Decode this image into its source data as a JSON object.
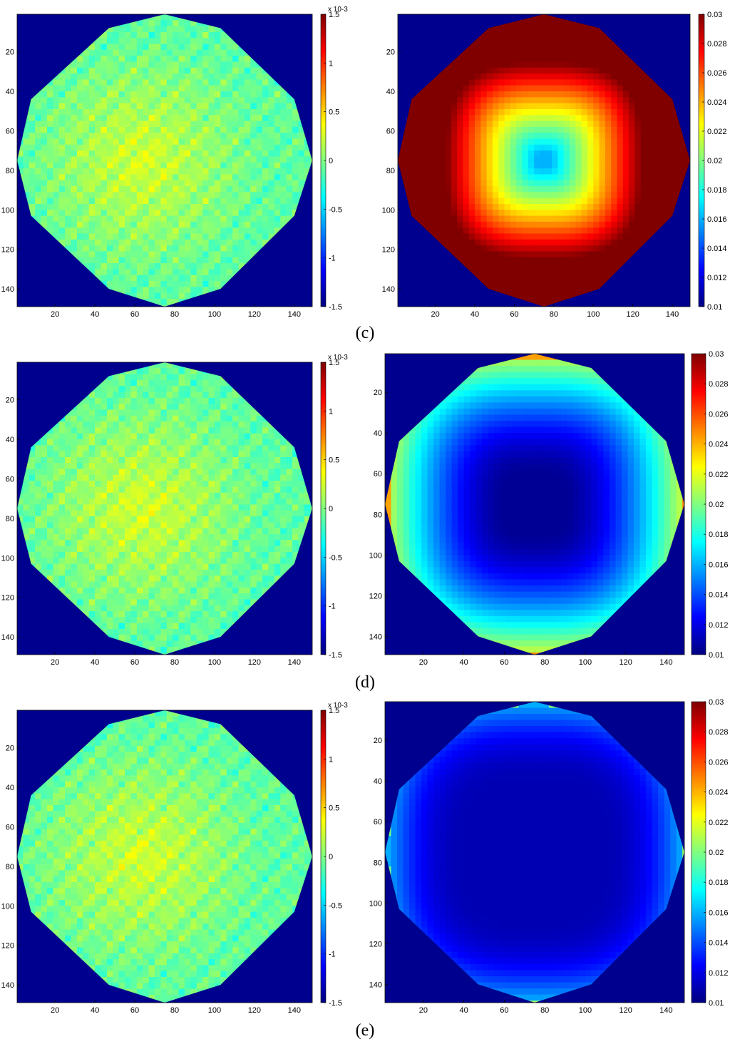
{
  "row_labels": [
    "(c)",
    "(d)",
    "(e)"
  ],
  "chart_data": [
    {
      "type": "heatmap",
      "row": 1,
      "panel": "left",
      "field": "noise",
      "x_ticks": [
        20,
        40,
        60,
        80,
        100,
        120,
        140
      ],
      "y_ticks": [
        20,
        40,
        60,
        80,
        100,
        120,
        140
      ],
      "x_range": [
        1,
        149
      ],
      "y_range": [
        1,
        149
      ],
      "cbar_ticks": [
        "1.5",
        "1",
        "0.5",
        "0",
        "-0.5",
        "-1",
        "-1.5"
      ],
      "cbar_range": [
        -1.5,
        1.5
      ],
      "cbar_exponent": "x 10-3",
      "colors": {
        "background": "#00008f"
      }
    },
    {
      "type": "heatmap",
      "row": 1,
      "panel": "right",
      "field": "radial",
      "x_ticks": [
        20,
        40,
        60,
        80,
        100,
        120,
        140
      ],
      "y_ticks": [
        20,
        40,
        60,
        80,
        100,
        120,
        140
      ],
      "x_range": [
        1,
        149
      ],
      "y_range": [
        1,
        149
      ],
      "cbar_ticks": [
        "0.03",
        "0.028",
        "0.026",
        "0.024",
        "0.022",
        "0.02",
        "0.018",
        "0.016",
        "0.014",
        "0.012",
        "0.01"
      ],
      "cbar_range": [
        0.01,
        0.03
      ],
      "colors": {
        "background": "#00008f"
      }
    },
    {
      "type": "heatmap",
      "row": 2,
      "panel": "left",
      "field": "noise",
      "x_ticks": [
        20,
        40,
        60,
        80,
        100,
        120,
        140
      ],
      "y_ticks": [
        20,
        40,
        60,
        80,
        100,
        120,
        140
      ],
      "x_range": [
        1,
        149
      ],
      "y_range": [
        1,
        149
      ],
      "cbar_ticks": [
        "1.5",
        "1",
        "0.5",
        "0",
        "-0.5",
        "-1",
        "-1.5"
      ],
      "cbar_range": [
        -1.5,
        1.5
      ],
      "cbar_exponent": "x 10-3",
      "colors": {
        "background": "#00008f"
      }
    },
    {
      "type": "heatmap",
      "row": 2,
      "panel": "right",
      "field": "edge-high",
      "x_ticks": [
        20,
        40,
        60,
        80,
        100,
        120,
        140
      ],
      "y_ticks": [
        20,
        40,
        60,
        80,
        100,
        120,
        140
      ],
      "x_range": [
        1,
        149
      ],
      "y_range": [
        1,
        149
      ],
      "cbar_ticks": [
        "0.03",
        "0.028",
        "0.026",
        "0.024",
        "0.022",
        "0.02",
        "0.018",
        "0.016",
        "0.014",
        "0.012",
        "0.01"
      ],
      "cbar_range": [
        0.01,
        0.03
      ],
      "colors": {
        "background": "#00008f"
      }
    },
    {
      "type": "heatmap",
      "row": 3,
      "panel": "left",
      "field": "noise",
      "x_ticks": [
        20,
        40,
        60,
        80,
        100,
        120,
        140
      ],
      "y_ticks": [
        20,
        40,
        60,
        80,
        100,
        120,
        140
      ],
      "x_range": [
        1,
        149
      ],
      "y_range": [
        1,
        149
      ],
      "cbar_ticks": [
        "1.5",
        "1",
        "0.5",
        "0",
        "-0.5",
        "-1",
        "-1.5"
      ],
      "cbar_range": [
        -1.5,
        1.5
      ],
      "cbar_exponent": "x 10-3",
      "colors": {
        "background": "#00008f"
      }
    },
    {
      "type": "heatmap",
      "row": 3,
      "panel": "right",
      "field": "edge-low",
      "x_ticks": [
        20,
        40,
        60,
        80,
        100,
        120,
        140
      ],
      "y_ticks": [
        20,
        40,
        60,
        80,
        100,
        120,
        140
      ],
      "x_range": [
        1,
        149
      ],
      "y_range": [
        1,
        149
      ],
      "cbar_ticks": [
        "0.03",
        "0.028",
        "0.026",
        "0.024",
        "0.022",
        "0.02",
        "0.018",
        "0.016",
        "0.014",
        "0.012",
        "0.01"
      ],
      "cbar_range": [
        0.01,
        0.03
      ],
      "colors": {
        "background": "#00008f"
      }
    }
  ]
}
